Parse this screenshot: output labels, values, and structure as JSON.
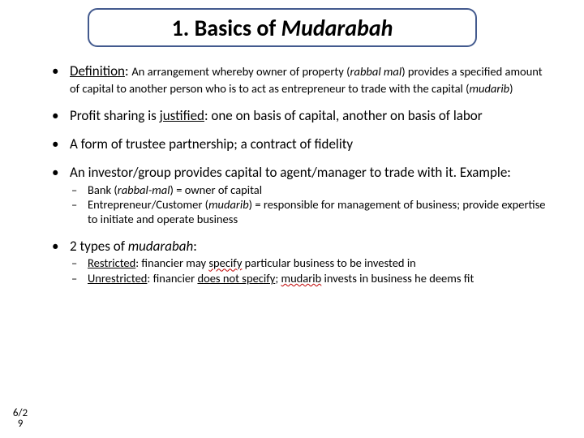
{
  "title": {
    "pre": "1. Basics of ",
    "italic": "Mudarabah"
  },
  "bullets": {
    "b1": {
      "lead_u": "Definition",
      "lead_rest": ": ",
      "small_a": "An arrangement whereby owner of property (",
      "small_i1": "rabbal mal",
      "small_b": ") provides a specified amount of capital to another person who is to act as entrepreneur to trade with the capital (",
      "small_i2": "mudarib",
      "small_c": ")"
    },
    "b2": {
      "a": "Profit sharing is ",
      "u": "justified",
      "b": ": one on basis of capital, another on basis of labor"
    },
    "b3": {
      "a": "A form of trustee partnership; a contract of fidelity"
    },
    "b4": {
      "a": "An investor/group provides capital to agent/manager to trade with it. Example:",
      "sub1": {
        "a": "Bank (",
        "i": "rabbal-mal",
        "b": ") = owner of capital"
      },
      "sub2": {
        "a": "Entrepreneur/Customer (",
        "i": "mudarib",
        "b": ") = responsible for management of business; provide expertise to initiate and operate business"
      }
    },
    "b5": {
      "a": "2 types of ",
      "i": "mudarabah",
      "b": ":",
      "sub1": {
        "u": "Restricted",
        "a": ": financier may ",
        "sq": "specify",
        "b": " particular business to be invested in"
      },
      "sub2": {
        "u": "Unrestricted",
        "a": ": financier ",
        "u2": "does not specify",
        "b": "; ",
        "sq": "mudarib",
        "c": " invests in business he deems fit"
      }
    }
  },
  "page": {
    "top": "6/2",
    "bot": "9"
  },
  "colors": {
    "border": "#435a8e",
    "squiggle": "#c00000",
    "bg": "#ffffff",
    "text": "#000000"
  }
}
